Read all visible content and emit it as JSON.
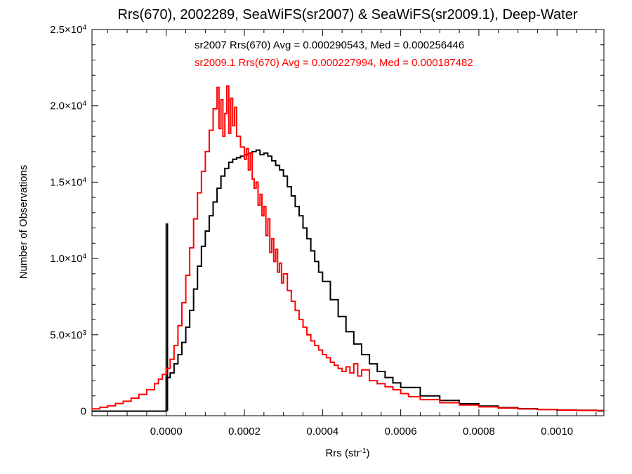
{
  "chart_data": {
    "type": "histogram-step",
    "title": "Rrs(670), 2002289, SeaWiFS(sr2007) & SeaWiFS(sr2009.1), Deep-Water",
    "xlabel": "Rrs (str",
    "xlabel_sup": "-1",
    "xlabel_suffix": ")",
    "ylabel": "Number of Observations",
    "xlim": [
      -0.00019,
      0.00112
    ],
    "ylim": [
      -300,
      25000
    ],
    "x_ticks": [
      {
        "value": 0.0,
        "label": "0.0000"
      },
      {
        "value": 0.0002,
        "label": "0.0002"
      },
      {
        "value": 0.0004,
        "label": "0.0004"
      },
      {
        "value": 0.0006,
        "label": "0.0006"
      },
      {
        "value": 0.0008,
        "label": "0.0008"
      },
      {
        "value": 0.001,
        "label": "0.0010"
      }
    ],
    "y_ticks": [
      {
        "value": 0,
        "mant": "0",
        "exp": ""
      },
      {
        "value": 5000,
        "mant": "5.0×10",
        "exp": "3"
      },
      {
        "value": 10000,
        "mant": "1.0×10",
        "exp": "4"
      },
      {
        "value": 15000,
        "mant": "1.5×10",
        "exp": "4"
      },
      {
        "value": 20000,
        "mant": "2.0×10",
        "exp": "4"
      },
      {
        "value": 25000,
        "mant": "2.5×10",
        "exp": "4"
      }
    ],
    "annotations": [
      {
        "text": "sr2007 Rrs(670) Avg = 0.000290543, Med = 0.000256446",
        "color": "#000000"
      },
      {
        "text": "sr2009.1 Rrs(670) Avg = 0.000227994, Med = 0.000187482",
        "color": "#ff0000"
      }
    ],
    "series": [
      {
        "color": "#000000",
        "spike": {
          "x": 0.0,
          "value": 12300
        },
        "points": [
          [
            0.0,
            2200
          ],
          [
            1e-05,
            2500
          ],
          [
            2e-05,
            3100
          ],
          [
            3e-05,
            3700
          ],
          [
            4e-05,
            4500
          ],
          [
            5e-05,
            5500
          ],
          [
            6e-05,
            6600
          ],
          [
            7e-05,
            8000
          ],
          [
            8e-05,
            9500
          ],
          [
            9e-05,
            10800
          ],
          [
            0.0001,
            11800
          ],
          [
            0.00011,
            12800
          ],
          [
            0.00012,
            13700
          ],
          [
            0.00013,
            14600
          ],
          [
            0.00014,
            15400
          ],
          [
            0.00015,
            15900
          ],
          [
            0.00016,
            16300
          ],
          [
            0.00017,
            16500
          ],
          [
            0.00018,
            16600
          ],
          [
            0.00019,
            16700
          ],
          [
            0.0002,
            16800
          ],
          [
            0.00021,
            16900
          ],
          [
            0.00022,
            17000
          ],
          [
            0.00023,
            17100
          ],
          [
            0.00024,
            16800
          ],
          [
            0.00025,
            16900
          ],
          [
            0.00026,
            16700
          ],
          [
            0.00027,
            16400
          ],
          [
            0.00028,
            16100
          ],
          [
            0.00029,
            15800
          ],
          [
            0.0003,
            15400
          ],
          [
            0.00031,
            14700
          ],
          [
            0.00032,
            14100
          ],
          [
            0.00033,
            13400
          ],
          [
            0.00034,
            12800
          ],
          [
            0.00035,
            12000
          ],
          [
            0.00036,
            11300
          ],
          [
            0.00037,
            10500
          ],
          [
            0.00038,
            9800
          ],
          [
            0.00039,
            9100
          ],
          [
            0.0004,
            8500
          ],
          [
            0.00042,
            7300
          ],
          [
            0.00044,
            6200
          ],
          [
            0.00046,
            5200
          ],
          [
            0.00048,
            4400
          ],
          [
            0.0005,
            3700
          ],
          [
            0.00052,
            3100
          ],
          [
            0.00054,
            2600
          ],
          [
            0.00056,
            2200
          ],
          [
            0.00058,
            1850
          ],
          [
            0.0006,
            1550
          ],
          [
            0.00065,
            1000
          ],
          [
            0.0007,
            700
          ],
          [
            0.00075,
            480
          ],
          [
            0.0008,
            330
          ],
          [
            0.00085,
            230
          ],
          [
            0.0009,
            160
          ],
          [
            0.00095,
            110
          ],
          [
            0.001,
            80
          ],
          [
            0.00105,
            55
          ],
          [
            0.0011,
            40
          ],
          [
            0.00112,
            35
          ]
        ]
      },
      {
        "color": "#ff0000",
        "points": [
          [
            -0.00019,
            150
          ],
          [
            -0.00017,
            250
          ],
          [
            -0.00015,
            350
          ],
          [
            -0.00013,
            500
          ],
          [
            -0.00011,
            650
          ],
          [
            -9e-05,
            850
          ],
          [
            -7e-05,
            1100
          ],
          [
            -5e-05,
            1400
          ],
          [
            -3e-05,
            1800
          ],
          [
            -2e-05,
            2100
          ],
          [
            -1e-05,
            2400
          ],
          [
            0.0,
            2800
          ],
          [
            1e-05,
            3400
          ],
          [
            2e-05,
            4300
          ],
          [
            3e-05,
            5600
          ],
          [
            4e-05,
            7100
          ],
          [
            5e-05,
            8900
          ],
          [
            6e-05,
            10700
          ],
          [
            7e-05,
            12600
          ],
          [
            8e-05,
            14300
          ],
          [
            9e-05,
            15700
          ],
          [
            0.0001,
            17000
          ],
          [
            0.00011,
            18400
          ],
          [
            0.00012,
            19800
          ],
          [
            0.00013,
            21200
          ],
          [
            0.000135,
            18500
          ],
          [
            0.00014,
            20400
          ],
          [
            0.000145,
            18000
          ],
          [
            0.00015,
            19500
          ],
          [
            0.000155,
            21300
          ],
          [
            0.00016,
            18200
          ],
          [
            0.000165,
            20500
          ],
          [
            0.00017,
            18700
          ],
          [
            0.000175,
            19900
          ],
          [
            0.00018,
            18000
          ],
          [
            0.00019,
            17300
          ],
          [
            0.0002,
            16500
          ],
          [
            0.000205,
            17200
          ],
          [
            0.00021,
            15800
          ],
          [
            0.000215,
            16900
          ],
          [
            0.00022,
            15200
          ],
          [
            0.000225,
            14600
          ],
          [
            0.00023,
            15000
          ],
          [
            0.000235,
            13500
          ],
          [
            0.00024,
            14200
          ],
          [
            0.000245,
            12800
          ],
          [
            0.00025,
            13400
          ],
          [
            0.000255,
            11500
          ],
          [
            0.00026,
            12600
          ],
          [
            0.000265,
            10400
          ],
          [
            0.00027,
            11300
          ],
          [
            0.000275,
            9800
          ],
          [
            0.00028,
            10600
          ],
          [
            0.000285,
            9100
          ],
          [
            0.00029,
            9700
          ],
          [
            0.000295,
            8400
          ],
          [
            0.0003,
            9000
          ],
          [
            0.00031,
            7900
          ],
          [
            0.00032,
            7200
          ],
          [
            0.00033,
            6600
          ],
          [
            0.00034,
            6000
          ],
          [
            0.00035,
            5500
          ],
          [
            0.00036,
            5000
          ],
          [
            0.00037,
            4600
          ],
          [
            0.00038,
            4300
          ],
          [
            0.00039,
            4000
          ],
          [
            0.0004,
            3700
          ],
          [
            0.00041,
            3500
          ],
          [
            0.00042,
            3200
          ],
          [
            0.00043,
            3000
          ],
          [
            0.00044,
            2800
          ],
          [
            0.00045,
            2600
          ],
          [
            0.00046,
            2900
          ],
          [
            0.00047,
            2500
          ],
          [
            0.00048,
            3100
          ],
          [
            0.00049,
            2300
          ],
          [
            0.0005,
            2700
          ],
          [
            0.00052,
            2000
          ],
          [
            0.00054,
            1800
          ],
          [
            0.00056,
            1600
          ],
          [
            0.00058,
            1400
          ],
          [
            0.0006,
            1150
          ],
          [
            0.00062,
            950
          ],
          [
            0.00065,
            750
          ],
          [
            0.0007,
            550
          ],
          [
            0.00075,
            400
          ],
          [
            0.0008,
            280
          ],
          [
            0.00085,
            200
          ],
          [
            0.0009,
            140
          ],
          [
            0.00095,
            100
          ],
          [
            0.001,
            70
          ],
          [
            0.00105,
            50
          ],
          [
            0.0011,
            35
          ],
          [
            0.00112,
            30
          ]
        ]
      }
    ]
  }
}
